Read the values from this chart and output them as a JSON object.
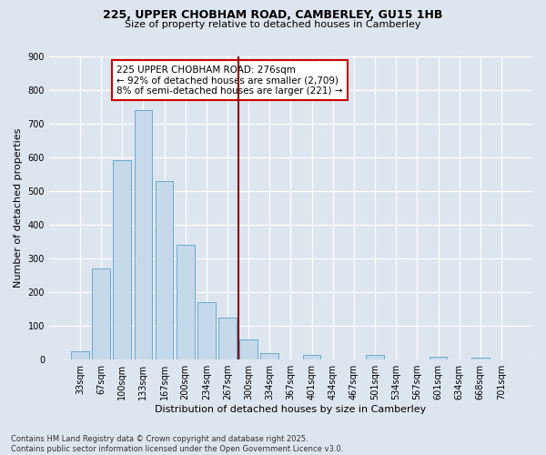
{
  "title_line1": "225, UPPER CHOBHAM ROAD, CAMBERLEY, GU15 1HB",
  "title_line2": "Size of property relative to detached houses in Camberley",
  "xlabel": "Distribution of detached houses by size in Camberley",
  "ylabel": "Number of detached properties",
  "footer_line1": "Contains HM Land Registry data © Crown copyright and database right 2025.",
  "footer_line2": "Contains public sector information licensed under the Open Government Licence v3.0.",
  "annotation_line1": "225 UPPER CHOBHAM ROAD: 276sqm",
  "annotation_line2": "← 92% of detached houses are smaller (2,709)",
  "annotation_line3": "8% of semi-detached houses are larger (221) →",
  "categories": [
    "33sqm",
    "67sqm",
    "100sqm",
    "133sqm",
    "167sqm",
    "200sqm",
    "234sqm",
    "267sqm",
    "300sqm",
    "334sqm",
    "367sqm",
    "401sqm",
    "434sqm",
    "467sqm",
    "501sqm",
    "534sqm",
    "567sqm",
    "601sqm",
    "634sqm",
    "668sqm",
    "701sqm"
  ],
  "bar_values": [
    25,
    270,
    590,
    740,
    530,
    340,
    170,
    125,
    60,
    20,
    0,
    15,
    0,
    0,
    15,
    0,
    0,
    10,
    0,
    5,
    0
  ],
  "bar_color": "#c5d9ea",
  "bar_edge_color": "#6aaacf",
  "vline_color": "#8b0000",
  "background_color": "#dde5ef",
  "plot_bg_color": "#dde5ef",
  "ylim": [
    0,
    900
  ],
  "yticks": [
    0,
    100,
    200,
    300,
    400,
    500,
    600,
    700,
    800,
    900
  ],
  "annotation_box_facecolor": "white",
  "annotation_box_edgecolor": "#cc0000",
  "grid_color": "#c8d4e0",
  "title1_fontsize": 9,
  "title2_fontsize": 8,
  "axis_label_fontsize": 8,
  "tick_fontsize": 7,
  "annotation_fontsize": 7.5,
  "footer_fontsize": 6
}
